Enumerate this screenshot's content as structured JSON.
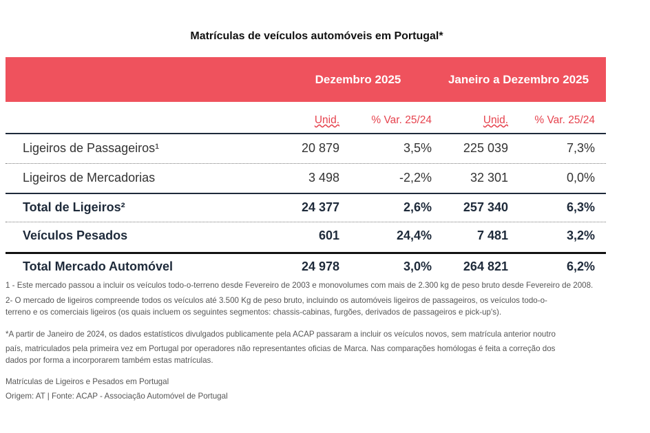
{
  "title": "Matrículas de veículos automóveis em Portugal*",
  "table": {
    "header": [
      "Dezembro 2025",
      "Janeiro a Dezembro 2025"
    ],
    "subheader": [
      "Unid.",
      "% Var. 25/24",
      "Unid.",
      "% Var. 25/24"
    ],
    "rows": [
      {
        "label": "Ligeiros de Passageiros¹",
        "cells": [
          "20 879",
          "3,5%",
          "225 039",
          "7,3%"
        ]
      },
      {
        "label": "Ligeiros de Mercadorias",
        "cells": [
          "3 498",
          "-2,2%",
          "32 301",
          "0,0%"
        ]
      },
      {
        "label": "Total de Ligeiros²",
        "cells": [
          "24 377",
          "2,6%",
          "257 340",
          "6,3%"
        ]
      },
      {
        "label": "Veículos Pesados",
        "cells": [
          "601",
          "24,4%",
          "7 481",
          "3,2%"
        ]
      },
      {
        "label": "Total Mercado Automóvel",
        "cells": [
          "24 978",
          "3,0%",
          "264 821",
          "6,2%"
        ]
      }
    ]
  },
  "notes": [
    [
      "1 - Este mercado passou a incluir os veículos todo-o-terreno desde Fevereiro de 2003 e monovolumes com mais de 2.300 kg de peso bruto desde Fevereiro de 2008.",
      "2- O mercado de ligeiros compreende todos os veículos até 3.500 Kg de peso bruto, incluindo os automóveis ligeiros de passageiros, os veículos todo-o-",
      "terreno e os comerciais ligeiros (os quais incluem os seguintes segmentos: chassis-cabinas, furgões, derivados de passageiros e pick-up's)."
    ],
    [
      "*A partir de Janeiro de 2024, os dados estatísticos divulgados publicamente pela ACAP passaram a incluir os veículos novos, sem matrícula anterior noutro",
      "país, matriculados pela primeira vez em Portugal por operadores não representantes oficias de Marca. Nas comparações homólogas é feita a correção dos",
      "dados por forma a incorporarem também estas matrículas."
    ],
    [
      "Matrículas de Ligeiros e Pesados em Portugal",
      "Origem: AT | Fonte: ACAP - Associação Automóvel de Portugal"
    ]
  ]
}
